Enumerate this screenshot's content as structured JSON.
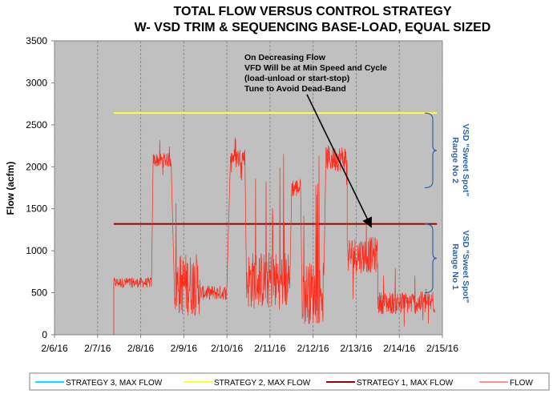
{
  "chart_data": {
    "type": "line",
    "title": [
      "TOTAL FLOW VERSUS CONTROL STRATEGY",
      "W- VSD TRIM & SEQUENCING BASE-LOAD, EQUAL SIZED"
    ],
    "ylabel": "Flow (acfm)",
    "xlabel": "",
    "ylim": [
      0,
      3500
    ],
    "yticks": [
      "0",
      "500",
      "1000",
      "1500",
      "2000",
      "2500",
      "3000",
      "3500"
    ],
    "xlim": [
      "2/6/16",
      "2/15/16"
    ],
    "xticks": [
      "2/6/16",
      "2/7/16",
      "2/8/16",
      "2/9/16",
      "2/10/16",
      "2/11/16",
      "2/12/16",
      "2/13/16",
      "2/14/16",
      "2/15/16"
    ],
    "grid": "vertical",
    "background": "#c0c0c0",
    "series": [
      {
        "name": "STRATEGY 3, MAX FLOW",
        "color": "#00e5ff",
        "x": [],
        "y": []
      },
      {
        "name": "STRATEGY 2, MAX FLOW",
        "color": "#ffff33",
        "x": [
          "2/7/16 09:00",
          "2/14/16 21:00"
        ],
        "y": [
          2640,
          2640
        ]
      },
      {
        "name": "STRATEGY 1, MAX FLOW",
        "color": "#990000",
        "x": [
          "2/7/16 09:00",
          "2/14/16 21:00"
        ],
        "y": [
          1320,
          1320
        ]
      },
      {
        "name": "FLOW",
        "color": "#ff2a1a",
        "segments": [
          {
            "start": "2/7/16 09:00",
            "end": "2/8/16 06:00",
            "low": 450,
            "high": 800,
            "typical": 620
          },
          {
            "start": "2/8/16 07:00",
            "end": "2/8/16 17:00",
            "low": 1820,
            "high": 2320,
            "typical": 2080
          },
          {
            "start": "2/8/16 19:00",
            "end": "2/9/16 09:00",
            "low": 50,
            "high": 2200,
            "typical": 600
          },
          {
            "start": "2/9/16 09:00",
            "end": "2/10/16 00:00",
            "low": 300,
            "high": 800,
            "typical": 500
          },
          {
            "start": "2/10/16 02:00",
            "end": "2/10/16 10:00",
            "low": 1800,
            "high": 2400,
            "typical": 2120
          },
          {
            "start": "2/10/16 11:00",
            "end": "2/11/16 11:00",
            "low": 300,
            "high": 2300,
            "typical": 650
          },
          {
            "start": "2/11/16 12:00",
            "end": "2/11/16 17:00",
            "low": 1450,
            "high": 2100,
            "typical": 1750
          },
          {
            "start": "2/11/16 18:00",
            "end": "2/12/16 06:00",
            "low": 100,
            "high": 2250,
            "typical": 500
          },
          {
            "start": "2/12/16 07:00",
            "end": "2/12/16 19:00",
            "low": 1500,
            "high": 2400,
            "typical": 2100
          },
          {
            "start": "2/12/16 19:00",
            "end": "2/13/16 12:00",
            "low": 400,
            "high": 1650,
            "typical": 950
          },
          {
            "start": "2/13/16 12:00",
            "end": "2/14/16 20:00",
            "low": 30,
            "high": 800,
            "typical": 380
          }
        ]
      }
    ],
    "legend": {
      "position": "bottom",
      "entries": [
        "STRATEGY 3, MAX FLOW",
        "STRATEGY 2, MAX FLOW",
        "STRATEGY 1, MAX FLOW",
        "FLOW"
      ]
    },
    "annotations": {
      "note_lines": [
        "On Decreasing Flow",
        "VFD Will be at Min Speed and Cycle",
        "(load-unload or start-stop)",
        "Tune to Avoid Dead-Band"
      ],
      "arrow_target": {
        "x": "2/13/16 08:00",
        "y": 1300
      }
    },
    "braces": [
      {
        "label_lines": [
          "VSD \"Sweet Spot\"",
          "Range No 2"
        ],
        "y_from": 1750,
        "y_to": 2640,
        "color": "#2a64a8"
      },
      {
        "label_lines": [
          "VSD \"Sweet Spot\"",
          "Range No 1"
        ],
        "y_from": 500,
        "y_to": 1320,
        "color": "#2a64a8"
      }
    ]
  }
}
